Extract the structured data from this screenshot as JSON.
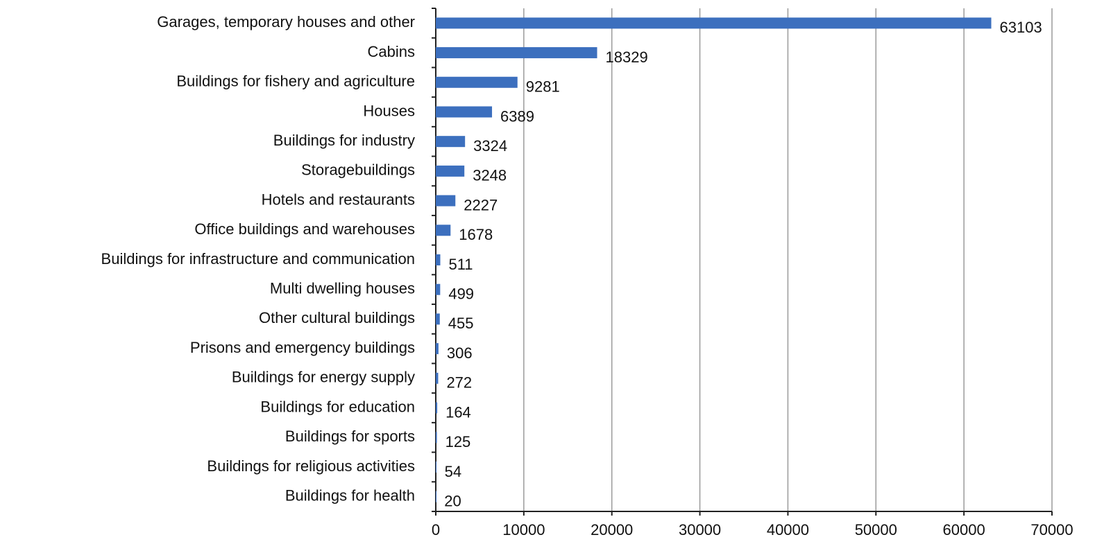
{
  "chart_data": {
    "type": "bar",
    "orientation": "horizontal",
    "categories": [
      "Garages, temporary houses and other",
      "Cabins",
      "Buildings for fishery and agriculture",
      "Houses",
      "Buildings for industry",
      "Storagebuildings",
      "Hotels and restaurants",
      "Office buildings and warehouses",
      "Buildings for infrastructure and communication",
      "Multi dwelling houses",
      "Other cultural buildings",
      "Prisons and emergency buildings",
      "Buildings for energy supply",
      "Buildings for education",
      "Buildings for sports",
      "Buildings for religious activities",
      "Buildings for health"
    ],
    "values": [
      63103,
      18329,
      9281,
      6389,
      3324,
      3248,
      2227,
      1678,
      511,
      499,
      455,
      306,
      272,
      164,
      125,
      54,
      20
    ],
    "color": "#3c6fbe",
    "xlim": [
      0,
      70000
    ],
    "xticks": [
      0,
      10000,
      20000,
      30000,
      40000,
      50000,
      60000,
      70000
    ],
    "grid": true
  }
}
